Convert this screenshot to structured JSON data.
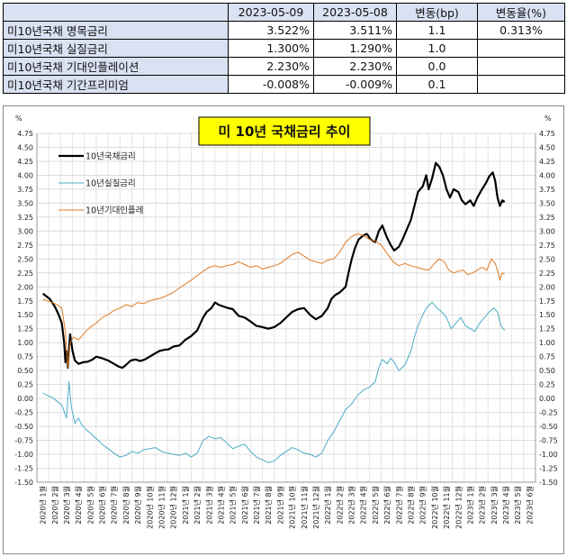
{
  "table": {
    "headers": [
      "",
      "2023-05-09",
      "2023-05-08",
      "변동(bp)",
      "변동율(%)"
    ],
    "rows": [
      {
        "label": "미10년국채 명목금리",
        "v1": "3.522%",
        "v2": "3.511%",
        "bp": "1.1",
        "pct": "0.313%"
      },
      {
        "label": "미10년국채 실질금리",
        "v1": "1.300%",
        "v2": "1.290%",
        "bp": "1.0",
        "pct": ""
      },
      {
        "label": "미10년국채 기대인플레이션",
        "v1": "2.230%",
        "v2": "2.230%",
        "bp": "0.0",
        "pct": ""
      },
      {
        "label": "미10년국채 기간프리미엄",
        "v1": "-0.008%",
        "v2": "-0.009%",
        "bp": "0.1",
        "pct": ""
      }
    ]
  },
  "chart_data": {
    "type": "line",
    "title": "미 10년  국채금리  추이",
    "ylabel_left": "%",
    "ylabel_right": "%",
    "ylim": [
      -1.5,
      4.75
    ],
    "ytick_step": 0.25,
    "grid": true,
    "legend_position": "top-left",
    "x_categories": [
      "2020년 1",
      "2020년 2",
      "2020년 3",
      "2020년 4",
      "2020년 5",
      "2020년 6",
      "2020년 7",
      "2020년 8",
      "2020년 9",
      "2020년 10",
      "2020년 11",
      "2020년 12",
      "2021년 1",
      "2021년 2",
      "2021년 3",
      "2021년 4",
      "2021년 5",
      "2021년 6",
      "2021년 7",
      "2021년 8",
      "2021년 9",
      "2021년 10",
      "2021년 11",
      "2021년 12",
      "2022년 1",
      "2022년 2",
      "2022년 3",
      "2022년 4",
      "2022년 5",
      "2022년 6",
      "2022년 7",
      "2022년 8",
      "2022년 9",
      "2022년 10",
      "2022년 11",
      "2022년 12",
      "2023년 1",
      "2023년 2",
      "2023년 3",
      "2023년 4",
      "2023년 5",
      "2023년 6"
    ],
    "x_suffix": "월",
    "series": [
      {
        "name": "10년국채금리",
        "color": "#000000",
        "width": 2.2,
        "points": [
          [
            0,
            1.88
          ],
          [
            0.3,
            1.83
          ],
          [
            0.6,
            1.78
          ],
          [
            1,
            1.65
          ],
          [
            1.3,
            1.52
          ],
          [
            1.6,
            1.35
          ],
          [
            1.8,
            1.0
          ],
          [
            1.9,
            0.65
          ],
          [
            2.0,
            0.85
          ],
          [
            2.1,
            0.55
          ],
          [
            2.3,
            1.15
          ],
          [
            2.5,
            0.85
          ],
          [
            2.7,
            0.68
          ],
          [
            3,
            0.62
          ],
          [
            3.4,
            0.65
          ],
          [
            3.8,
            0.66
          ],
          [
            4.2,
            0.7
          ],
          [
            4.5,
            0.75
          ],
          [
            5,
            0.72
          ],
          [
            5.5,
            0.68
          ],
          [
            6,
            0.62
          ],
          [
            6.4,
            0.57
          ],
          [
            6.7,
            0.55
          ],
          [
            7,
            0.6
          ],
          [
            7.4,
            0.68
          ],
          [
            7.8,
            0.7
          ],
          [
            8.2,
            0.67
          ],
          [
            8.6,
            0.7
          ],
          [
            9,
            0.75
          ],
          [
            9.4,
            0.8
          ],
          [
            9.8,
            0.85
          ],
          [
            10.2,
            0.87
          ],
          [
            10.6,
            0.88
          ],
          [
            11,
            0.93
          ],
          [
            11.5,
            0.95
          ],
          [
            12,
            1.05
          ],
          [
            12.5,
            1.12
          ],
          [
            13,
            1.22
          ],
          [
            13.5,
            1.45
          ],
          [
            13.8,
            1.55
          ],
          [
            14.2,
            1.62
          ],
          [
            14.5,
            1.72
          ],
          [
            14.8,
            1.68
          ],
          [
            15.2,
            1.65
          ],
          [
            15.6,
            1.62
          ],
          [
            16,
            1.6
          ],
          [
            16.5,
            1.48
          ],
          [
            17,
            1.45
          ],
          [
            17.5,
            1.38
          ],
          [
            18,
            1.3
          ],
          [
            18.5,
            1.28
          ],
          [
            19,
            1.25
          ],
          [
            19.5,
            1.28
          ],
          [
            20,
            1.35
          ],
          [
            20.5,
            1.45
          ],
          [
            21,
            1.55
          ],
          [
            21.5,
            1.6
          ],
          [
            22,
            1.62
          ],
          [
            22.5,
            1.5
          ],
          [
            23,
            1.42
          ],
          [
            23.5,
            1.48
          ],
          [
            24,
            1.62
          ],
          [
            24.3,
            1.78
          ],
          [
            24.6,
            1.85
          ],
          [
            25,
            1.9
          ],
          [
            25.5,
            2.0
          ],
          [
            25.8,
            2.3
          ],
          [
            26,
            2.48
          ],
          [
            26.3,
            2.7
          ],
          [
            26.6,
            2.85
          ],
          [
            27,
            2.92
          ],
          [
            27.3,
            2.95
          ],
          [
            27.6,
            2.85
          ],
          [
            28,
            2.8
          ],
          [
            28.3,
            3.0
          ],
          [
            28.6,
            3.1
          ],
          [
            29,
            2.88
          ],
          [
            29.3,
            2.75
          ],
          [
            29.6,
            2.65
          ],
          [
            30,
            2.72
          ],
          [
            30.3,
            2.85
          ],
          [
            30.6,
            3.0
          ],
          [
            31,
            3.2
          ],
          [
            31.3,
            3.45
          ],
          [
            31.6,
            3.7
          ],
          [
            32,
            3.8
          ],
          [
            32.3,
            4.0
          ],
          [
            32.5,
            3.75
          ],
          [
            32.8,
            3.95
          ],
          [
            33.1,
            4.22
          ],
          [
            33.4,
            4.15
          ],
          [
            33.7,
            4.0
          ],
          [
            34,
            3.75
          ],
          [
            34.3,
            3.6
          ],
          [
            34.6,
            3.75
          ],
          [
            35,
            3.7
          ],
          [
            35.3,
            3.55
          ],
          [
            35.6,
            3.48
          ],
          [
            36,
            3.55
          ],
          [
            36.3,
            3.45
          ],
          [
            36.6,
            3.6
          ],
          [
            37,
            3.75
          ],
          [
            37.3,
            3.85
          ],
          [
            37.6,
            3.98
          ],
          [
            37.9,
            4.05
          ],
          [
            38.1,
            3.9
          ],
          [
            38.3,
            3.6
          ],
          [
            38.5,
            3.45
          ],
          [
            38.7,
            3.55
          ],
          [
            38.9,
            3.52
          ]
        ]
      },
      {
        "name": "10년실질금리",
        "color": "#4bacc6",
        "width": 1,
        "points": [
          [
            0,
            0.1
          ],
          [
            0.4,
            0.05
          ],
          [
            0.8,
            0.02
          ],
          [
            1.2,
            -0.05
          ],
          [
            1.6,
            -0.12
          ],
          [
            2.0,
            -0.35
          ],
          [
            2.2,
            0.3
          ],
          [
            2.4,
            -0.15
          ],
          [
            2.7,
            -0.45
          ],
          [
            3,
            -0.35
          ],
          [
            3.3,
            -0.48
          ],
          [
            3.6,
            -0.55
          ],
          [
            4,
            -0.62
          ],
          [
            4.5,
            -0.72
          ],
          [
            5,
            -0.82
          ],
          [
            5.5,
            -0.9
          ],
          [
            6,
            -0.98
          ],
          [
            6.5,
            -1.05
          ],
          [
            7,
            -1.02
          ],
          [
            7.5,
            -0.95
          ],
          [
            8,
            -0.98
          ],
          [
            8.5,
            -0.92
          ],
          [
            9,
            -0.9
          ],
          [
            9.5,
            -0.88
          ],
          [
            10,
            -0.95
          ],
          [
            10.5,
            -0.98
          ],
          [
            11,
            -1.0
          ],
          [
            11.5,
            -1.02
          ],
          [
            12,
            -0.98
          ],
          [
            12.5,
            -1.05
          ],
          [
            13,
            -0.98
          ],
          [
            13.5,
            -0.75
          ],
          [
            14,
            -0.68
          ],
          [
            14.5,
            -0.72
          ],
          [
            15,
            -0.7
          ],
          [
            15.5,
            -0.8
          ],
          [
            16,
            -0.9
          ],
          [
            16.5,
            -0.85
          ],
          [
            17,
            -0.82
          ],
          [
            17.5,
            -0.95
          ],
          [
            18,
            -1.05
          ],
          [
            18.5,
            -1.1
          ],
          [
            19,
            -1.15
          ],
          [
            19.5,
            -1.12
          ],
          [
            20,
            -1.02
          ],
          [
            20.5,
            -0.95
          ],
          [
            21,
            -0.88
          ],
          [
            21.5,
            -0.92
          ],
          [
            22,
            -0.98
          ],
          [
            22.5,
            -1.0
          ],
          [
            23,
            -1.05
          ],
          [
            23.5,
            -0.98
          ],
          [
            24,
            -0.75
          ],
          [
            24.5,
            -0.6
          ],
          [
            25,
            -0.4
          ],
          [
            25.5,
            -0.2
          ],
          [
            26,
            -0.1
          ],
          [
            26.5,
            0.05
          ],
          [
            27,
            0.15
          ],
          [
            27.5,
            0.2
          ],
          [
            28,
            0.3
          ],
          [
            28.3,
            0.55
          ],
          [
            28.6,
            0.7
          ],
          [
            29,
            0.62
          ],
          [
            29.3,
            0.72
          ],
          [
            29.6,
            0.65
          ],
          [
            30,
            0.5
          ],
          [
            30.5,
            0.6
          ],
          [
            31,
            0.85
          ],
          [
            31.3,
            1.1
          ],
          [
            31.6,
            1.3
          ],
          [
            32,
            1.5
          ],
          [
            32.4,
            1.65
          ],
          [
            32.8,
            1.72
          ],
          [
            33.2,
            1.62
          ],
          [
            33.6,
            1.55
          ],
          [
            34,
            1.45
          ],
          [
            34.4,
            1.25
          ],
          [
            34.8,
            1.35
          ],
          [
            35.2,
            1.45
          ],
          [
            35.6,
            1.3
          ],
          [
            36,
            1.25
          ],
          [
            36.4,
            1.2
          ],
          [
            36.8,
            1.35
          ],
          [
            37.2,
            1.45
          ],
          [
            37.6,
            1.55
          ],
          [
            38,
            1.62
          ],
          [
            38.3,
            1.55
          ],
          [
            38.6,
            1.3
          ],
          [
            38.9,
            1.22
          ]
        ]
      },
      {
        "name": "10년기대인플레",
        "color": "#e07b24",
        "width": 1,
        "points": [
          [
            0,
            1.78
          ],
          [
            0.4,
            1.75
          ],
          [
            0.8,
            1.72
          ],
          [
            1.2,
            1.68
          ],
          [
            1.6,
            1.62
          ],
          [
            1.9,
            1.2
          ],
          [
            2.1,
            0.55
          ],
          [
            2.3,
            1.0
          ],
          [
            2.6,
            1.1
          ],
          [
            3,
            1.05
          ],
          [
            3.3,
            1.12
          ],
          [
            3.6,
            1.2
          ],
          [
            4,
            1.28
          ],
          [
            4.5,
            1.35
          ],
          [
            5,
            1.45
          ],
          [
            5.5,
            1.5
          ],
          [
            6,
            1.58
          ],
          [
            6.5,
            1.62
          ],
          [
            7,
            1.68
          ],
          [
            7.5,
            1.65
          ],
          [
            8,
            1.72
          ],
          [
            8.5,
            1.7
          ],
          [
            9,
            1.75
          ],
          [
            9.5,
            1.78
          ],
          [
            10,
            1.8
          ],
          [
            10.5,
            1.85
          ],
          [
            11,
            1.9
          ],
          [
            11.5,
            1.98
          ],
          [
            12,
            2.05
          ],
          [
            12.5,
            2.12
          ],
          [
            13,
            2.2
          ],
          [
            13.5,
            2.28
          ],
          [
            14,
            2.35
          ],
          [
            14.5,
            2.38
          ],
          [
            15,
            2.35
          ],
          [
            15.5,
            2.38
          ],
          [
            16,
            2.4
          ],
          [
            16.5,
            2.45
          ],
          [
            17,
            2.4
          ],
          [
            17.5,
            2.35
          ],
          [
            18,
            2.38
          ],
          [
            18.5,
            2.32
          ],
          [
            19,
            2.35
          ],
          [
            19.5,
            2.38
          ],
          [
            20,
            2.42
          ],
          [
            20.5,
            2.5
          ],
          [
            21,
            2.58
          ],
          [
            21.5,
            2.62
          ],
          [
            22,
            2.55
          ],
          [
            22.5,
            2.48
          ],
          [
            23,
            2.45
          ],
          [
            23.5,
            2.42
          ],
          [
            24,
            2.48
          ],
          [
            24.5,
            2.5
          ],
          [
            25,
            2.62
          ],
          [
            25.5,
            2.8
          ],
          [
            26,
            2.9
          ],
          [
            26.5,
            2.95
          ],
          [
            27,
            2.92
          ],
          [
            27.5,
            2.85
          ],
          [
            28,
            2.82
          ],
          [
            28.5,
            2.75
          ],
          [
            29,
            2.6
          ],
          [
            29.5,
            2.45
          ],
          [
            30,
            2.38
          ],
          [
            30.5,
            2.42
          ],
          [
            31,
            2.38
          ],
          [
            31.5,
            2.35
          ],
          [
            32,
            2.32
          ],
          [
            32.5,
            2.3
          ],
          [
            33,
            2.42
          ],
          [
            33.4,
            2.5
          ],
          [
            33.8,
            2.45
          ],
          [
            34.2,
            2.3
          ],
          [
            34.6,
            2.25
          ],
          [
            35,
            2.28
          ],
          [
            35.4,
            2.3
          ],
          [
            35.8,
            2.22
          ],
          [
            36.2,
            2.25
          ],
          [
            36.6,
            2.3
          ],
          [
            37,
            2.35
          ],
          [
            37.4,
            2.3
          ],
          [
            37.8,
            2.5
          ],
          [
            38.1,
            2.42
          ],
          [
            38.3,
            2.3
          ],
          [
            38.5,
            2.12
          ],
          [
            38.7,
            2.25
          ],
          [
            38.9,
            2.23
          ]
        ]
      }
    ]
  }
}
